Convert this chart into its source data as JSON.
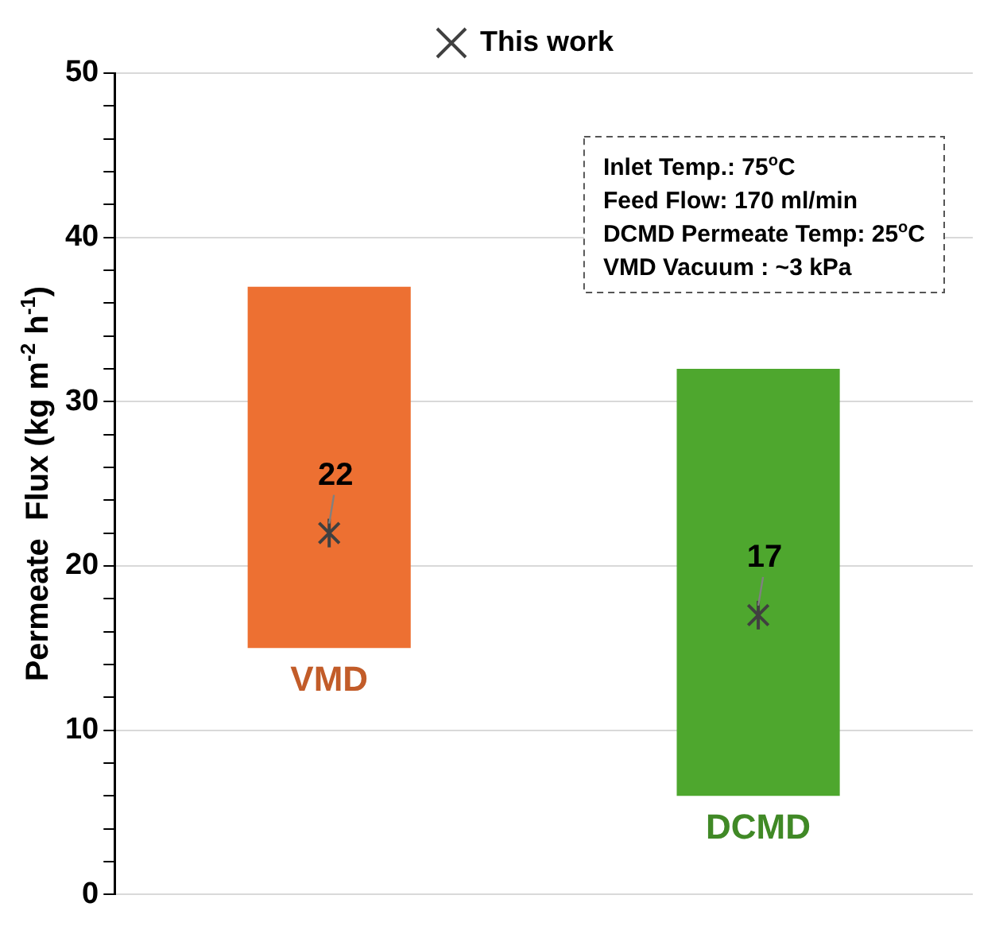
{
  "chart_data": {
    "type": "bar",
    "ylabel": "Permeate  Flux (kg m$^{-2}$ h$^{-1}$)",
    "categories": [
      "VMD",
      "DCMD"
    ],
    "series": [
      {
        "colors": [
          "#ed7032",
          "#4ea72e"
        ],
        "base": [
          15,
          6
        ],
        "values": [
          22,
          26
        ]
      },
      {
        "type": "scatter",
        "name": "This work",
        "color": "#404040",
        "x": [
          "VMD",
          "DCMD"
        ],
        "values": [
          22,
          17
        ],
        "marker": "cross",
        "data_labels": true
      }
    ],
    "ylim": [
      0,
      50
    ],
    "yticks": [
      0,
      {
        "value": 2,
        "label": null
      },
      {
        "value": 4,
        "label": null
      },
      {
        "value": 6,
        "label": null
      },
      {
        "value": 8,
        "label": null
      },
      10,
      {
        "value": 12,
        "label": null
      },
      {
        "value": 14,
        "label": null
      },
      {
        "value": 16,
        "label": null
      },
      {
        "value": 18,
        "label": null
      },
      20,
      {
        "value": 22,
        "label": null
      },
      {
        "value": 24,
        "label": null
      },
      {
        "value": 26,
        "label": null
      },
      {
        "value": 28,
        "label": null
      },
      30,
      {
        "value": 32,
        "label": null
      },
      {
        "value": 34,
        "label": null
      },
      {
        "value": 36,
        "label": null
      },
      {
        "value": 38,
        "label": null
      },
      40,
      {
        "value": 42,
        "label": null
      },
      {
        "value": 44,
        "label": null
      },
      {
        "value": 46,
        "label": null
      },
      {
        "value": 48,
        "label": null
      },
      50
    ],
    "grid": "y",
    "legend": "top",
    "annotations": [
      "Inlet Temp.: 75$^{o}$C",
      "Feed Flow: 170 ml/min",
      "DCMD Permeate Temp: 25$^{o}$C",
      "VMD Vacuum : ~3 kPa"
    ]
  }
}
